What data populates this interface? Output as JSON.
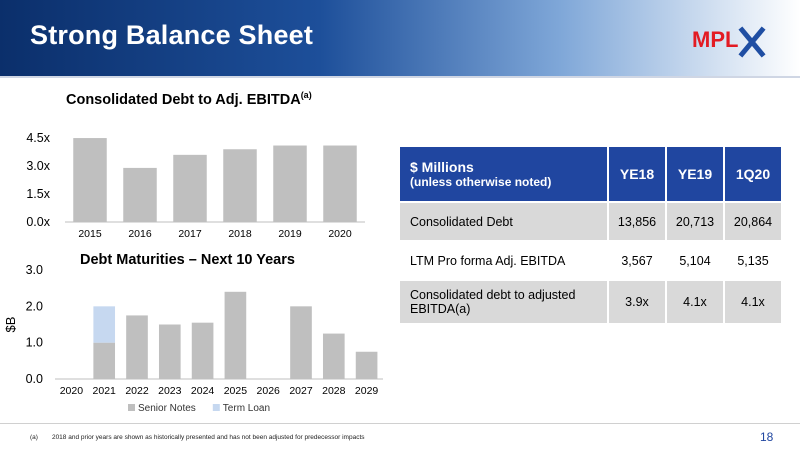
{
  "header": {
    "title": "Strong Balance Sheet",
    "logo_text": "MPLX"
  },
  "colors": {
    "header_dark": "#0b2f6b",
    "table_header": "#2046a0",
    "bar_gray": "#bfbfbf",
    "term_loan": "#c6d8f0",
    "logo_red": "#e31b23",
    "logo_blue": "#1f4ea3"
  },
  "chart_data": [
    {
      "type": "bar",
      "title": "Consolidated Debt to Adj. EBITDA",
      "title_sup": "(a)",
      "categories": [
        "2015",
        "2016",
        "2017",
        "2018",
        "2019",
        "2020"
      ],
      "values": [
        4.5,
        2.9,
        3.6,
        3.9,
        4.1,
        4.1
      ],
      "yticks": [
        "0.0x",
        "1.5x",
        "3.0x",
        "4.5x"
      ],
      "ylim": [
        0,
        5.2
      ],
      "grid": false
    },
    {
      "type": "bar",
      "stacked": true,
      "title": "Debt Maturities – Next 10 Years",
      "ylabel": "$B",
      "categories": [
        "2020",
        "2021",
        "2022",
        "2023",
        "2024",
        "2025",
        "2026",
        "2027",
        "2028",
        "2029"
      ],
      "series": [
        {
          "name": "Senior Notes",
          "values": [
            0,
            1.0,
            1.75,
            1.5,
            1.55,
            2.4,
            0,
            2.0,
            1.25,
            0.75
          ]
        },
        {
          "name": "Term Loan",
          "values": [
            0,
            1.0,
            0,
            0,
            0,
            0,
            0,
            0,
            0,
            0
          ]
        }
      ],
      "yticks": [
        "0.0",
        "1.0",
        "2.0",
        "3.0"
      ],
      "ylim": [
        0,
        3.0
      ],
      "legend_position": "bottom"
    }
  ],
  "table": {
    "header": {
      "main": "$ Millions",
      "sub": "(unless otherwise noted)",
      "cols": [
        "YE18",
        "YE19",
        "1Q20"
      ]
    },
    "rows": [
      {
        "label": "Consolidated Debt",
        "values": [
          "13,856",
          "20,713",
          "20,864"
        ]
      },
      {
        "label": "LTM Pro forma Adj. EBITDA",
        "values": [
          "3,567",
          "5,104",
          "5,135"
        ]
      },
      {
        "label": "Consolidated debt to adjusted EBITDA(a)",
        "values": [
          "3.9x",
          "4.1x",
          "4.1x"
        ]
      }
    ]
  },
  "footnote": {
    "tag": "(a)",
    "text": "2018 and prior years are shown as historically presented and has not been adjusted for predecessor impacts"
  },
  "page_number": "18"
}
